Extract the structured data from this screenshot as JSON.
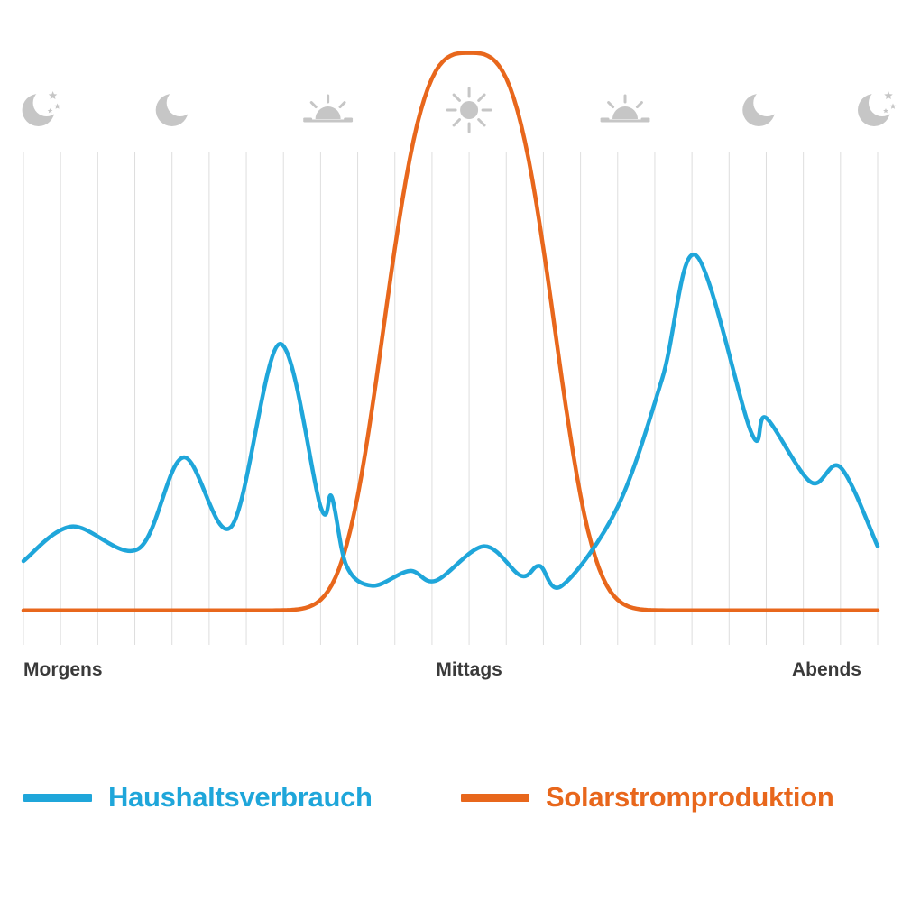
{
  "chart_data": {
    "type": "line",
    "title": "",
    "xlabel": "",
    "ylabel": "",
    "x_tick_labels": [
      {
        "label": "Morgens",
        "hour": 0
      },
      {
        "label": "Mittags",
        "hour": 12
      },
      {
        "label": "Abends",
        "hour": 23
      }
    ],
    "xlim": [
      0,
      23
    ],
    "ylim": [
      0,
      100
    ],
    "grid": true,
    "legend_position": "bottom",
    "series": [
      {
        "name": "Haushaltsverbrauch",
        "color": "#1fa6da",
        "points": [
          [
            0,
            17
          ],
          [
            1.3,
            24
          ],
          [
            3.1,
            19.5
          ],
          [
            4.3,
            38
          ],
          [
            5.6,
            24
          ],
          [
            6.9,
            61
          ],
          [
            8.0,
            28
          ],
          [
            8.3,
            30
          ],
          [
            8.7,
            16
          ],
          [
            9.4,
            12
          ],
          [
            10.4,
            15
          ],
          [
            11.1,
            13
          ],
          [
            12.4,
            20
          ],
          [
            13.4,
            14
          ],
          [
            13.9,
            16
          ],
          [
            14.5,
            12
          ],
          [
            16.0,
            28
          ],
          [
            17.2,
            54
          ],
          [
            18.1,
            79
          ],
          [
            19.6,
            43
          ],
          [
            20.0,
            46
          ],
          [
            21.2,
            33
          ],
          [
            22.0,
            36
          ],
          [
            23,
            20
          ]
        ]
      },
      {
        "name": "Solarstromproduktion",
        "color": "#e8671c",
        "peak_hour": 12,
        "peak_value": 120,
        "baseline": 7
      }
    ]
  },
  "time_icons": [
    {
      "icon": "moon-stars-icon",
      "hour": 0.5
    },
    {
      "icon": "moon-icon",
      "hour": 4
    },
    {
      "icon": "sunrise-icon",
      "hour": 8.2
    },
    {
      "icon": "sun-icon",
      "hour": 12
    },
    {
      "icon": "sunset-icon",
      "hour": 16.2
    },
    {
      "icon": "moon-icon",
      "hour": 19.8
    },
    {
      "icon": "moon-stars-icon",
      "hour": 23
    }
  ],
  "colors": {
    "grid": "#dedede",
    "icon": "#c6c6c6",
    "label": "#3a3a3a"
  }
}
